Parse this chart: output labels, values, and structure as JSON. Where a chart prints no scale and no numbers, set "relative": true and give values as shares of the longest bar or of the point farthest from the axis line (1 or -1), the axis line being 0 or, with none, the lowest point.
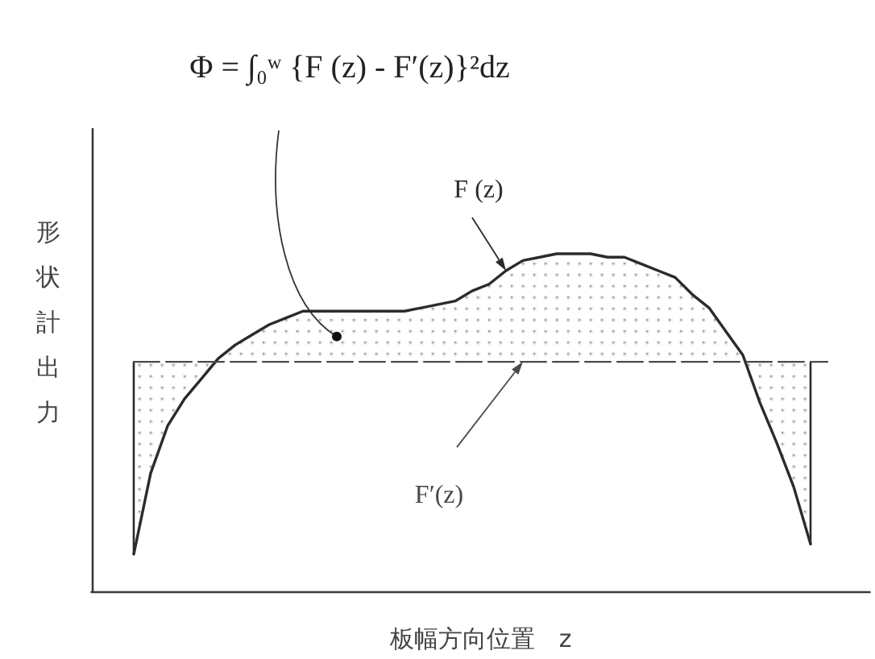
{
  "chart_data": {
    "type": "line",
    "relative": true,
    "marker": "none",
    "xlabel": "板幅方向位置　z",
    "ylabel": "形状計出力",
    "annotations": [
      "Φ = ∫₀ʷ {F (z) - F′(z)}²dz"
    ],
    "categories": [
      null,
      null,
      null,
      null,
      null,
      null,
      null,
      null,
      null,
      null,
      null,
      null,
      null,
      null,
      null,
      null,
      null,
      null,
      null,
      null,
      null,
      null,
      null,
      null,
      null,
      null,
      null,
      null,
      null,
      null,
      null,
      null,
      null,
      null,
      null,
      null,
      null,
      null,
      null,
      null,
      null,
      null,
      null,
      null,
      null,
      null
    ],
    "series": [
      {
        "name": "F (z)",
        "color": "#2b2b2b",
        "values": [
          null,
          null,
          0.11,
          0.35,
          0.49,
          0.57,
          0.63,
          0.69,
          0.73,
          0.76,
          0.79,
          0.81,
          0.83,
          0.83,
          0.83,
          0.83,
          0.83,
          0.83,
          0.83,
          0.84,
          0.85,
          0.86,
          0.89,
          0.91,
          0.95,
          0.98,
          0.99,
          1,
          1,
          1,
          0.99,
          0.99,
          0.97,
          0.95,
          0.93,
          0.88,
          0.84,
          0.77,
          0.7,
          0.56,
          0.44,
          0.31,
          0.14,
          null,
          null,
          null
        ],
        "lower": [
          null,
          null,
          0.11,
          0.35,
          0.49,
          0.57,
          0.63,
          0.68,
          0.68,
          0.68,
          0.68,
          0.68,
          0.68,
          0.68,
          0.68,
          0.68,
          0.68,
          0.68,
          0.68,
          0.68,
          0.68,
          0.68,
          0.68,
          0.68,
          0.68,
          0.68,
          0.68,
          0.68,
          0.68,
          0.68,
          0.68,
          0.68,
          0.68,
          0.68,
          0.68,
          0.68,
          0.68,
          0.68,
          0.68,
          0.56,
          0.44,
          0.31,
          0.14,
          null,
          null,
          null
        ],
        "upper": [
          null,
          null,
          0.68,
          0.68,
          0.68,
          0.68,
          0.68,
          0.69,
          0.73,
          0.76,
          0.79,
          0.81,
          0.83,
          0.83,
          0.83,
          0.83,
          0.83,
          0.83,
          0.83,
          0.84,
          0.85,
          0.86,
          0.89,
          0.91,
          0.95,
          0.98,
          0.99,
          1,
          1,
          1,
          0.99,
          0.99,
          0.97,
          0.95,
          0.93,
          0.88,
          0.84,
          0.77,
          0.7,
          0.68,
          0.68,
          0.68,
          0.68,
          null,
          null,
          null
        ]
      },
      {
        "name": "F′(z)",
        "color": "#4a4a4a",
        "line_style": "dashed",
        "values": [
          null,
          null,
          0.68,
          0.68,
          0.68,
          0.68,
          0.68,
          0.68,
          0.68,
          0.68,
          0.68,
          0.68,
          0.68,
          0.68,
          0.68,
          0.68,
          0.68,
          0.68,
          0.68,
          0.68,
          0.68,
          0.68,
          0.68,
          0.68,
          0.68,
          0.68,
          0.68,
          0.68,
          0.68,
          0.68,
          0.68,
          0.68,
          0.68,
          0.68,
          0.68,
          0.68,
          0.68,
          0.68,
          0.68,
          0.68,
          0.68,
          0.68,
          0.68,
          0.68,
          null,
          null
        ]
      }
    ]
  }
}
